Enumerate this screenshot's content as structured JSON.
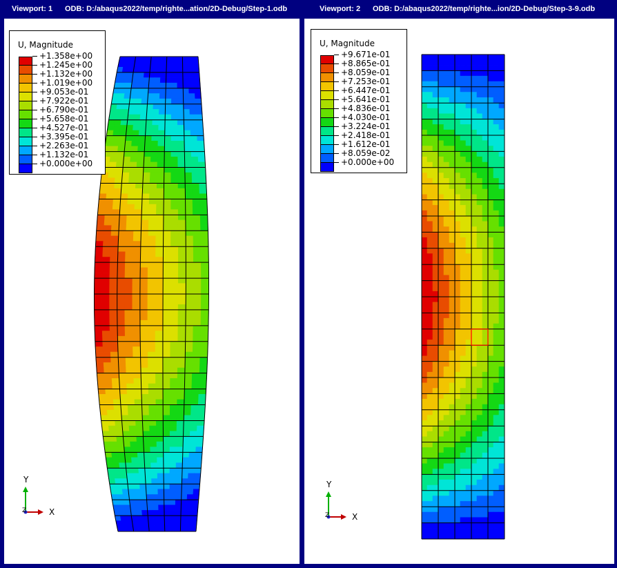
{
  "colors": {
    "band_palette": [
      "#0000ff",
      "#005eff",
      "#00a8ff",
      "#00e5d7",
      "#00e688",
      "#14d814",
      "#66e000",
      "#aadd00",
      "#dce000",
      "#f2c400",
      "#f09000",
      "#e84c00",
      "#e00000"
    ],
    "frame": "#000080",
    "mesh_line": "#000000",
    "highlight": "#ff0000"
  },
  "viewports": [
    {
      "label": "Viewport: 1",
      "odb": "ODB: D:/abaqus2022/temp/righte...ation/2D-Debug/Step-1.odb",
      "legend": {
        "title": "U, Magnitude",
        "values": [
          "+1.358e+00",
          "+1.245e+00",
          "+1.132e+00",
          "+1.019e+00",
          "+9.053e-01",
          "+7.922e-01",
          "+6.790e-01",
          "+5.658e-01",
          "+4.527e-01",
          "+3.395e-01",
          "+2.263e-01",
          "+1.132e-01",
          "+0.000e+00"
        ]
      },
      "triad": {
        "y_label": "Y",
        "x_label": "X",
        "z_label": "Z"
      },
      "mesh": {
        "cols": 5,
        "rows": 30,
        "deformed": true,
        "highlight_cell": null
      }
    },
    {
      "label": "Viewport: 2",
      "odb": "ODB: D:/abaqus2022/temp/righte...ion/2D-Debug/Step-3-9.odb",
      "legend": {
        "title": "U, Magnitude",
        "values": [
          "+9.671e-01",
          "+8.865e-01",
          "+8.059e-01",
          "+7.253e-01",
          "+6.447e-01",
          "+5.641e-01",
          "+4.836e-01",
          "+4.030e-01",
          "+3.224e-01",
          "+2.418e-01",
          "+1.612e-01",
          "+8.059e-02",
          "+0.000e+00"
        ]
      },
      "triad": {
        "y_label": "Y",
        "x_label": "X",
        "z_label": "Z"
      },
      "mesh": {
        "cols": 5,
        "rows": 30,
        "deformed": false,
        "highlight_cell": {
          "col": 3,
          "row": 17
        }
      }
    }
  ]
}
